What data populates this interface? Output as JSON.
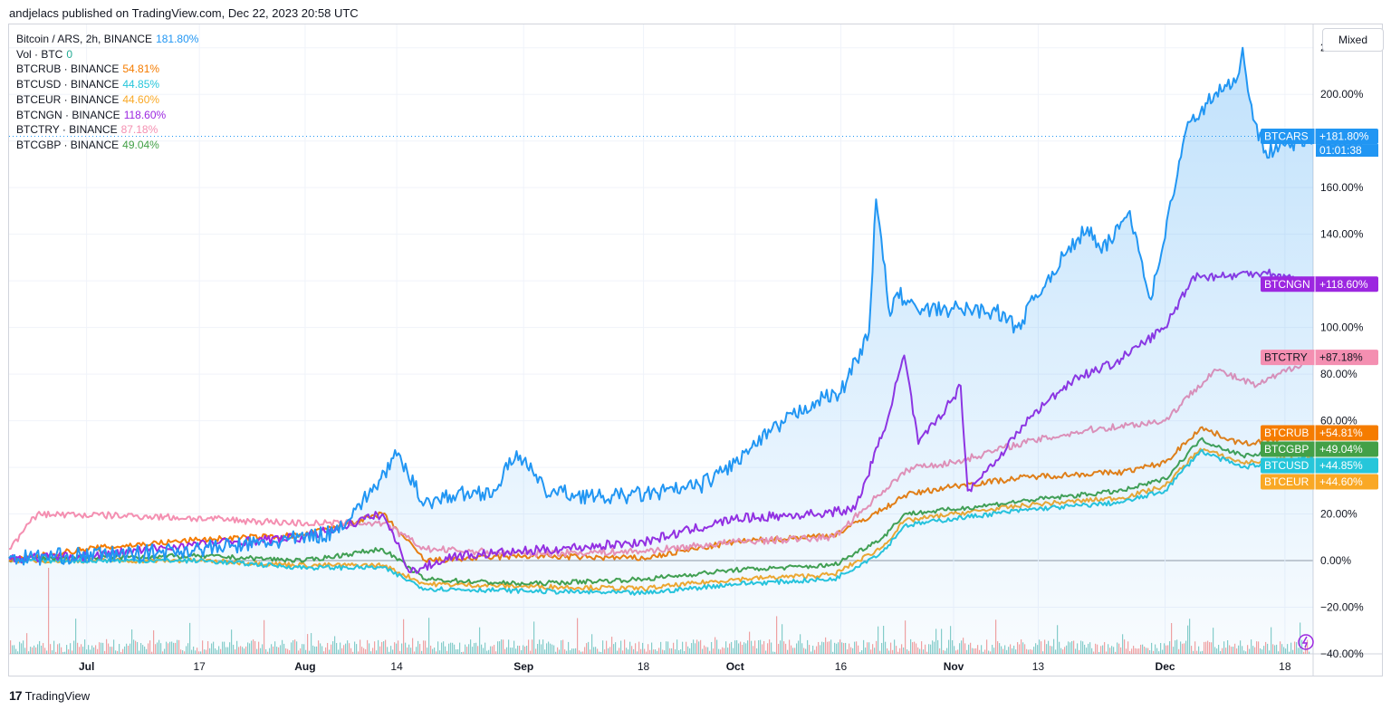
{
  "header": {
    "published": "andjelacs published on TradingView.com, Dec 22, 2023 20:58 UTC"
  },
  "toolbar": {
    "scale_mode": "Mixed"
  },
  "footer": {
    "logo_glyph": "17",
    "brand": "TradingView"
  },
  "legend": [
    {
      "symbol": "Bitcoin / ARS, 2h, BINANCE",
      "value": "181.80%",
      "color": "#2196f3"
    },
    {
      "symbol": "Vol · BTC",
      "value": "0",
      "color": "#22ab94"
    },
    {
      "symbol": "BTCRUB · BINANCE",
      "value": "54.81%",
      "color": "#f57c00"
    },
    {
      "symbol": "BTCUSD · BINANCE",
      "value": "44.85%",
      "color": "#26c6da"
    },
    {
      "symbol": "BTCEUR · BINANCE",
      "value": "44.60%",
      "color": "#f9a825"
    },
    {
      "symbol": "BTCNGN · BINANCE",
      "value": "118.60%",
      "color": "#9c27e0"
    },
    {
      "symbol": "BTCTRY · BINANCE",
      "value": "87.18%",
      "color": "#f48fb1"
    },
    {
      "symbol": "BTCGBP · BINANCE",
      "value": "49.04%",
      "color": "#43a047"
    }
  ],
  "chart_data": {
    "type": "line",
    "x_unit": "date (2023)",
    "xlim": [
      "2023-06-20",
      "2023-12-22"
    ],
    "ylim": [
      -40,
      230
    ],
    "y_ticks": [
      "220.00%",
      "200.00%",
      "180.00%",
      "160.00%",
      "140.00%",
      "120.00%",
      "100.00%",
      "80.00%",
      "60.00%",
      "40.00%",
      "20.00%",
      "0.00%",
      "−20.00%",
      "−40.00%"
    ],
    "y_tick_values": [
      220,
      200,
      180,
      160,
      140,
      120,
      100,
      80,
      60,
      40,
      20,
      0,
      -20,
      -40
    ],
    "x_ticks": [
      {
        "label": "Jul",
        "date": "2023-07-01",
        "bold": true
      },
      {
        "label": "17",
        "date": "2023-07-17",
        "bold": false
      },
      {
        "label": "Aug",
        "date": "2023-08-01",
        "bold": true
      },
      {
        "label": "14",
        "date": "2023-08-14",
        "bold": false
      },
      {
        "label": "Sep",
        "date": "2023-09-01",
        "bold": true
      },
      {
        "label": "18",
        "date": "2023-09-18",
        "bold": false
      },
      {
        "label": "Oct",
        "date": "2023-10-01",
        "bold": true
      },
      {
        "label": "16",
        "date": "2023-10-16",
        "bold": false
      },
      {
        "label": "Nov",
        "date": "2023-11-01",
        "bold": true
      },
      {
        "label": "13",
        "date": "2023-11-13",
        "bold": false
      },
      {
        "label": "Dec",
        "date": "2023-12-01",
        "bold": true
      },
      {
        "label": "18",
        "date": "2023-12-18",
        "bold": false
      }
    ],
    "series": [
      {
        "name": "BTCARS",
        "color": "#2196f3",
        "label_color": "#2196f3",
        "area": true,
        "price_label": "+181.80%",
        "countdown": "01:01:38",
        "x": [
          "2023-06-20",
          "2023-06-28",
          "2023-07-08",
          "2023-07-17",
          "2023-07-28",
          "2023-08-05",
          "2023-08-10",
          "2023-08-14",
          "2023-08-18",
          "2023-08-22",
          "2023-08-28",
          "2023-08-31",
          "2023-09-04",
          "2023-09-12",
          "2023-09-20",
          "2023-09-26",
          "2023-10-01",
          "2023-10-06",
          "2023-10-12",
          "2023-10-16",
          "2023-10-20",
          "2023-10-21",
          "2023-10-23",
          "2023-10-24",
          "2023-10-27",
          "2023-11-01",
          "2023-11-07",
          "2023-11-10",
          "2023-11-15",
          "2023-11-20",
          "2023-11-22",
          "2023-11-26",
          "2023-11-29",
          "2023-12-02",
          "2023-12-04",
          "2023-12-08",
          "2023-12-11",
          "2023-12-12",
          "2023-12-13",
          "2023-12-15",
          "2023-12-18",
          "2023-12-22"
        ],
        "y": [
          1,
          2,
          3,
          5,
          8,
          12,
          28,
          45,
          25,
          28,
          30,
          47,
          30,
          27,
          29,
          32,
          42,
          55,
          68,
          72,
          98,
          155,
          105,
          115,
          107,
          108,
          107,
          100,
          124,
          143,
          132,
          150,
          112,
          155,
          185,
          200,
          205,
          220,
          198,
          175,
          178,
          182
        ]
      },
      {
        "name": "BTCNGN",
        "color": "#9c27e0",
        "label_color": "#9c27e0",
        "price_label": "+118.60%",
        "x": [
          "2023-06-20",
          "2023-07-01",
          "2023-07-17",
          "2023-08-01",
          "2023-08-12",
          "2023-08-16",
          "2023-08-22",
          "2023-09-01",
          "2023-09-10",
          "2023-09-18",
          "2023-10-01",
          "2023-10-12",
          "2023-10-18",
          "2023-10-22",
          "2023-10-25",
          "2023-10-27",
          "2023-11-01",
          "2023-11-02",
          "2023-11-03",
          "2023-11-07",
          "2023-11-12",
          "2023-11-18",
          "2023-11-24",
          "2023-12-01",
          "2023-12-05",
          "2023-12-10",
          "2023-12-15",
          "2023-12-22"
        ],
        "y": [
          1,
          2,
          7,
          10,
          20,
          -5,
          2,
          4,
          6,
          8,
          18,
          20,
          22,
          55,
          88,
          50,
          70,
          75,
          30,
          43,
          62,
          78,
          85,
          100,
          122,
          122,
          124,
          118.6
        ]
      },
      {
        "name": "BTCTRY",
        "color": "#f48fb1",
        "label_color": "#f48fb1",
        "price_label": "+87.18%",
        "x": [
          "2023-06-20",
          "2023-06-24",
          "2023-07-10",
          "2023-08-01",
          "2023-08-12",
          "2023-08-18",
          "2023-09-01",
          "2023-09-18",
          "2023-10-01",
          "2023-10-15",
          "2023-10-22",
          "2023-10-26",
          "2023-11-01",
          "2023-11-10",
          "2023-11-20",
          "2023-12-01",
          "2023-12-08",
          "2023-12-14",
          "2023-12-22"
        ],
        "y": [
          5,
          20,
          19,
          16,
          16,
          5,
          3,
          4,
          8,
          10,
          30,
          40,
          42,
          50,
          56,
          60,
          82,
          75,
          87.18
        ]
      },
      {
        "name": "BTCRUB",
        "color": "#f57c00",
        "label_color": "#f57c00",
        "price_label": "+54.81%",
        "x": [
          "2023-06-20",
          "2023-07-01",
          "2023-07-17",
          "2023-08-01",
          "2023-08-12",
          "2023-08-18",
          "2023-09-01",
          "2023-09-18",
          "2023-10-01",
          "2023-10-15",
          "2023-10-22",
          "2023-10-25",
          "2023-11-01",
          "2023-11-12",
          "2023-11-25",
          "2023-12-01",
          "2023-12-06",
          "2023-12-12",
          "2023-12-22"
        ],
        "y": [
          0,
          5,
          9,
          11,
          20,
          0,
          2,
          1,
          8,
          11,
          22,
          28,
          32,
          36,
          38,
          42,
          57,
          50,
          54.81
        ]
      },
      {
        "name": "BTCGBP",
        "color": "#43a047",
        "label_color": "#43a047",
        "price_label": "+49.04%",
        "x": [
          "2023-06-20",
          "2023-07-17",
          "2023-08-01",
          "2023-08-12",
          "2023-08-18",
          "2023-09-01",
          "2023-09-18",
          "2023-10-01",
          "2023-10-15",
          "2023-10-22",
          "2023-10-25",
          "2023-11-01",
          "2023-11-12",
          "2023-11-25",
          "2023-12-01",
          "2023-12-06",
          "2023-12-12",
          "2023-12-22"
        ],
        "y": [
          1,
          2,
          0,
          5,
          -8,
          -10,
          -8,
          -4,
          -2,
          10,
          20,
          22,
          26,
          30,
          35,
          52,
          45,
          49.04
        ]
      },
      {
        "name": "BTCUSD",
        "color": "#26c6da",
        "label_color": "#26c6da",
        "price_label": "+44.85%",
        "x": [
          "2023-06-20",
          "2023-07-17",
          "2023-08-01",
          "2023-08-12",
          "2023-08-18",
          "2023-09-01",
          "2023-09-18",
          "2023-10-01",
          "2023-10-15",
          "2023-10-22",
          "2023-10-25",
          "2023-11-01",
          "2023-11-12",
          "2023-11-25",
          "2023-12-01",
          "2023-12-06",
          "2023-12-12",
          "2023-12-22"
        ],
        "y": [
          0,
          0,
          -3,
          -3,
          -12,
          -13,
          -14,
          -10,
          -8,
          4,
          15,
          18,
          22,
          25,
          30,
          47,
          40,
          44.85
        ]
      },
      {
        "name": "BTCEUR",
        "color": "#f9a825",
        "label_color": "#f9a825",
        "price_label": "+44.60%",
        "x": [
          "2023-06-20",
          "2023-07-17",
          "2023-08-01",
          "2023-08-12",
          "2023-08-18",
          "2023-09-01",
          "2023-09-18",
          "2023-10-01",
          "2023-10-15",
          "2023-10-22",
          "2023-10-25",
          "2023-11-01",
          "2023-11-12",
          "2023-11-25",
          "2023-12-01",
          "2023-12-06",
          "2023-12-12",
          "2023-12-22"
        ],
        "y": [
          0,
          0,
          -2,
          -2,
          -10,
          -11,
          -12,
          -8,
          -6,
          6,
          17,
          20,
          24,
          27,
          32,
          48,
          42,
          44.6
        ]
      }
    ],
    "volume": {
      "name": "Vol · BTC",
      "up_color": "#26a69a",
      "down_color": "#ef5350",
      "visible": true
    },
    "grid": true,
    "legend_position": "top-left",
    "price_line": "BTCARS",
    "zero_line": true
  }
}
